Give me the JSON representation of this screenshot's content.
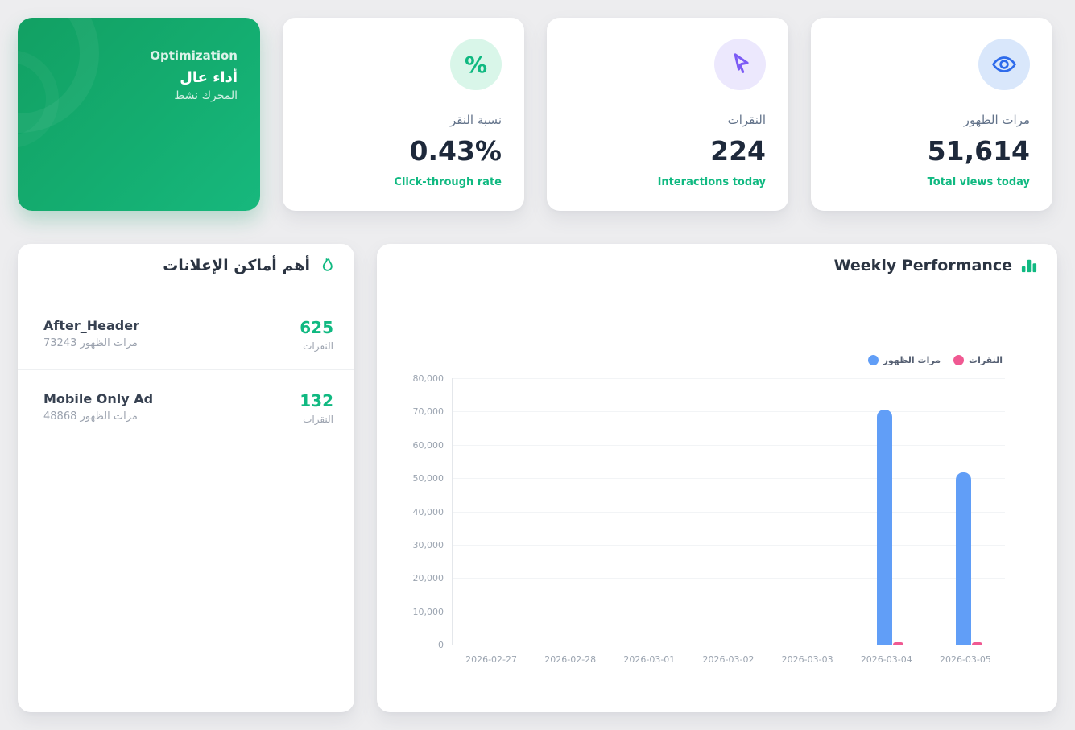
{
  "theme": {
    "page_bg": "#ededef",
    "accent_green": "#10b981",
    "value_color": "#1e293b",
    "bar_blue": "#619ef7",
    "bar_pink": "#f05992"
  },
  "status_card": {
    "badge": "Optimization",
    "title": "أداء عال",
    "subtitle": "المحرك نشط"
  },
  "stat_cards": [
    {
      "label": "نسبة النقر",
      "value": "0.43%",
      "caption": "Click-through rate",
      "icon": "percent-icon",
      "icon_bg": "#d9f6e9",
      "icon_color": "#10b981",
      "glyph": "%"
    },
    {
      "label": "النقرات",
      "value": "224",
      "caption": "Interactions today",
      "icon": "cursor-icon",
      "icon_bg": "#ece8fd",
      "icon_color": "#7c5bf5"
    },
    {
      "label": "مرات الظهور",
      "value": "51,614",
      "caption": "Total views today",
      "icon": "eye-icon",
      "icon_bg": "#d9e7fb",
      "icon_color": "#2e6beb"
    }
  ],
  "placements": {
    "title": "أهم أماكن الإعلانات",
    "items": [
      {
        "name": "After_Header",
        "impressions_text": "73243 مرات الظهور",
        "clicks": "625",
        "clicks_label": "النقرات"
      },
      {
        "name": "Mobile Only Ad",
        "impressions_text": "48868 مرات الظهور",
        "clicks": "132",
        "clicks_label": "النقرات"
      }
    ]
  },
  "chart_card": {
    "title": "Weekly Performance"
  },
  "chart_data": {
    "type": "bar",
    "title": "Weekly Performance",
    "xlabel": "",
    "ylabel": "",
    "categories": [
      "2026-02-27",
      "2026-02-28",
      "2026-03-01",
      "2026-03-02",
      "2026-03-03",
      "2026-03-04",
      "2026-03-05"
    ],
    "series": [
      {
        "name": "مرات الظهور",
        "color": "#619ef7",
        "values": [
          0,
          0,
          0,
          0,
          0,
          70497,
          51614
        ]
      },
      {
        "name": "النقرات",
        "color": "#f05992",
        "values": [
          0,
          0,
          0,
          0,
          0,
          533,
          224
        ]
      }
    ],
    "ylim": [
      0,
      80000
    ],
    "yticks": [
      0,
      10000,
      20000,
      30000,
      40000,
      50000,
      60000,
      70000,
      80000
    ],
    "ytick_labels": [
      "0",
      "10,000",
      "20,000",
      "30,000",
      "40,000",
      "50,000",
      "60,000",
      "70,000",
      "80,000"
    ],
    "legend_position": "top-right",
    "grid": "horizontal"
  }
}
